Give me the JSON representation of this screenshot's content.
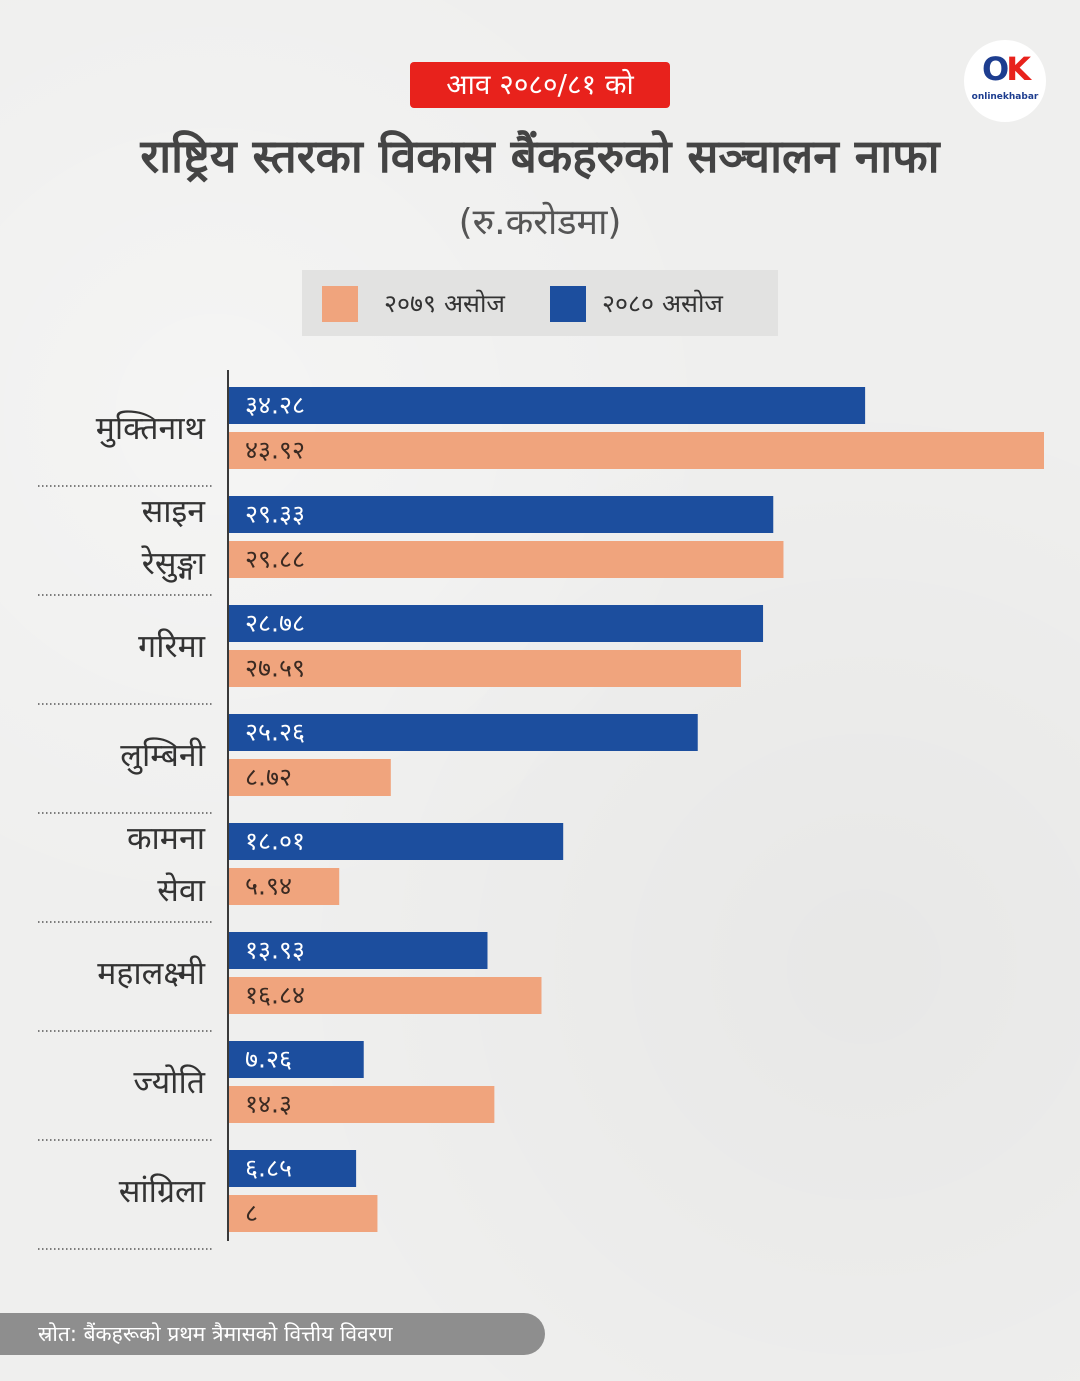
{
  "header": {
    "tag": "आव २०८०/८१ को",
    "title": "राष्ट्रिय स्तरका विकास बैंकहरुको सञ्चालन नाफा",
    "subtitle": "(रु.करोडमा)"
  },
  "logo": {
    "mark_o": "O",
    "mark_k": "K",
    "text": "onlinekhabar"
  },
  "legend": [
    {
      "label": "२०७९  असोज",
      "color": "#f0a47d"
    },
    {
      "label": "२०८०  असोज",
      "color": "#1c4e9e"
    }
  ],
  "footer": {
    "source": "स्रोत:  बैंकहरूको  प्रथम  त्रैमासको  वित्तीय  विवरण"
  },
  "chart_data": {
    "type": "bar",
    "orientation": "horizontal",
    "title": "राष्ट्रिय स्तरका विकास बैंकहरुको सञ्चालन नाफा",
    "subtitle": "(रु.करोडमा)",
    "categories": [
      [
        "मुक्तिनाथ"
      ],
      [
        "साइन",
        "रेसुङ्गा"
      ],
      [
        "गरिमा"
      ],
      [
        "लुम्बिनी"
      ],
      [
        "कामना",
        "सेवा"
      ],
      [
        "महालक्ष्मी"
      ],
      [
        "ज्योति"
      ],
      [
        "सांग्रिला"
      ]
    ],
    "series": [
      {
        "name": "२०८० असोज",
        "color": "#1c4e9e",
        "values": [
          34.28,
          29.33,
          28.78,
          25.26,
          18.01,
          13.93,
          7.26,
          6.85
        ],
        "labels": [
          "३४.२८",
          "२९.३३",
          "२८.७८",
          "२५.२६",
          "१८.०१",
          "१३.९३",
          "७.२६",
          "६.८५"
        ]
      },
      {
        "name": "२०७९ असोज",
        "color": "#f0a47d",
        "values": [
          43.92,
          29.88,
          27.59,
          8.72,
          5.94,
          16.84,
          14.3,
          8
        ],
        "labels": [
          "४३.९२",
          "२९.८८",
          "२७.५९",
          "८.७२",
          "५.९४",
          "१६.८४",
          "१४.३",
          "८"
        ]
      }
    ],
    "xlim": [
      0,
      43.92
    ],
    "grid": false,
    "legend_position": "top"
  }
}
